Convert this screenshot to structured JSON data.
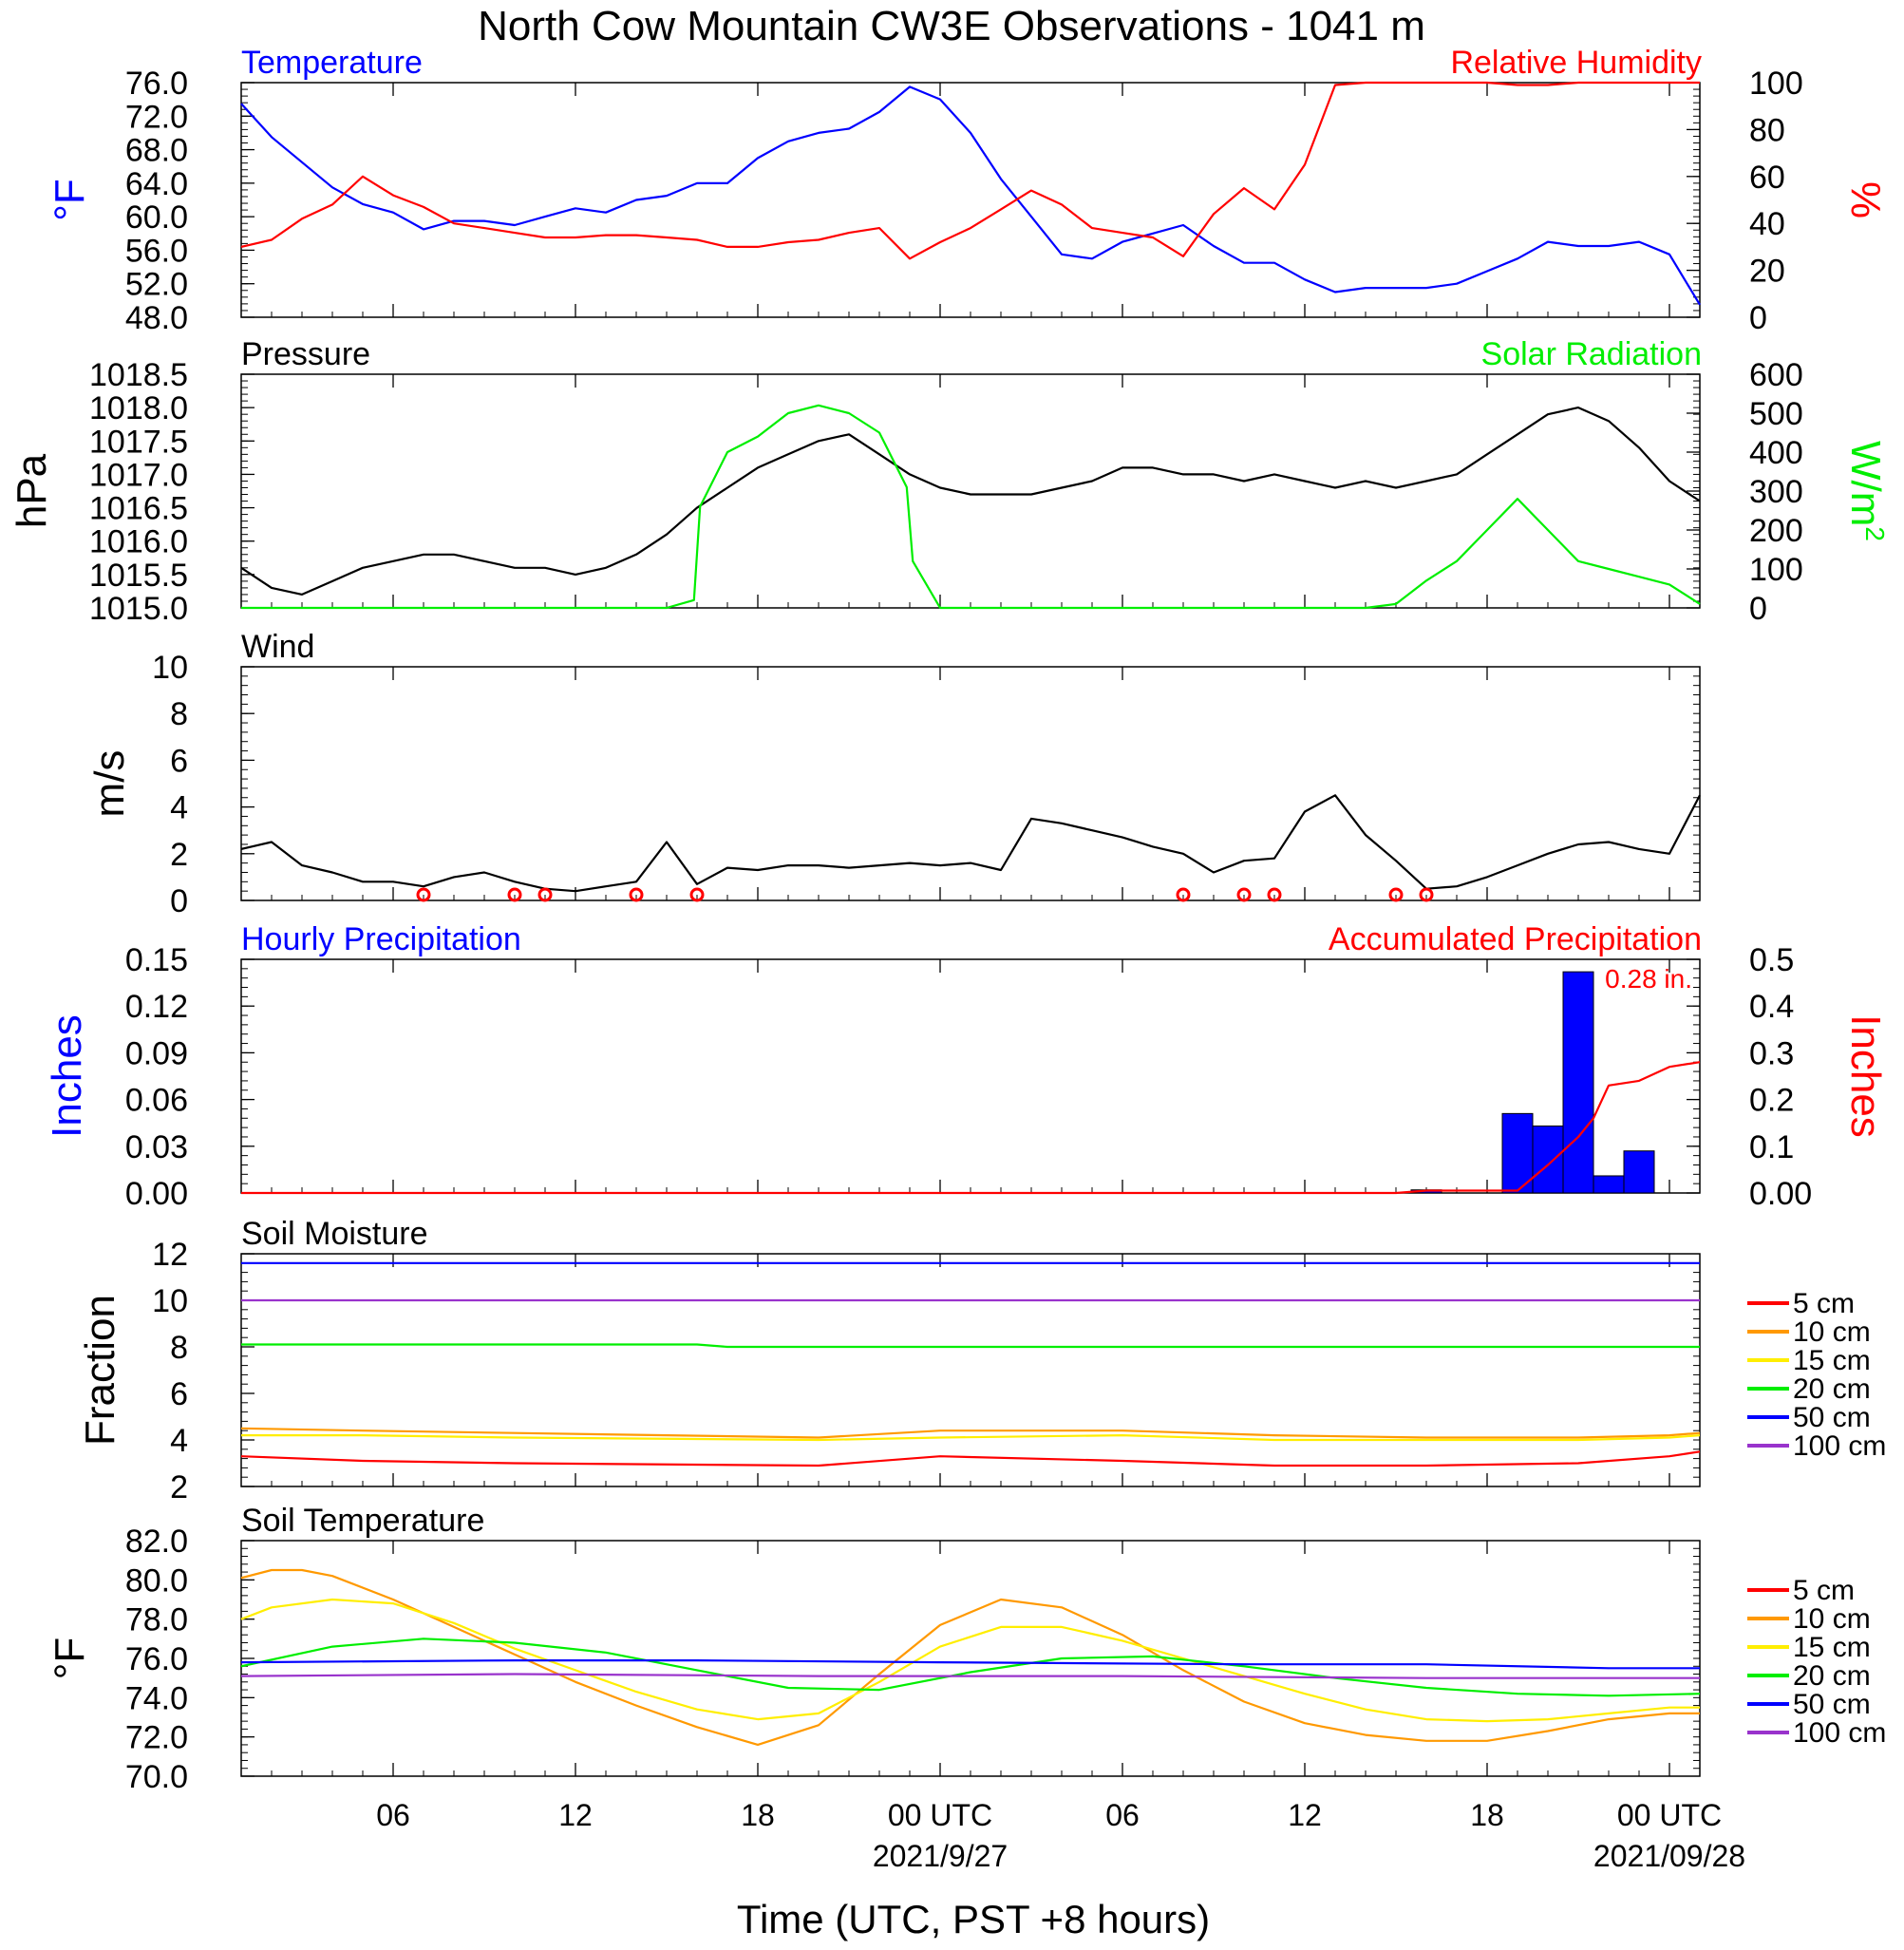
{
  "title": "North Cow Mountain CW3E Observations - 1041 m",
  "xlabel": "Time (UTC, PST +8 hours)",
  "x_ticks": [
    {
      "label": "06",
      "hour": 6
    },
    {
      "label": "12",
      "hour": 12
    },
    {
      "label": "18",
      "hour": 18
    },
    {
      "label": "00 UTC",
      "hour": 24,
      "sub": "2021/9/27"
    },
    {
      "label": "06",
      "hour": 30
    },
    {
      "label": "12",
      "hour": 36
    },
    {
      "label": "18",
      "hour": 42
    },
    {
      "label": "00 UTC",
      "hour": 48,
      "sub": "2021/09/28"
    }
  ],
  "x_range": [
    1,
    49
  ],
  "colors": {
    "blue": "#0000ff",
    "red": "#ff0000",
    "green": "#00ee00",
    "black": "#000000",
    "orange": "#ff9900",
    "yellow": "#ffee00",
    "purple": "#9933cc"
  },
  "chart_data": [
    {
      "type": "line",
      "id": "temp_rh",
      "left_title": "Temperature",
      "right_title": "Relative Humidity",
      "left_ylabel": "°F",
      "right_ylabel": "%",
      "left_ylim": [
        48,
        76
      ],
      "right_ylim": [
        0,
        100
      ],
      "left_ticks": [
        "76.0",
        "72.0",
        "68.0",
        "64.0",
        "60.0",
        "56.0",
        "52.0",
        "48.0"
      ],
      "right_ticks": [
        "100",
        "80",
        "60",
        "40",
        "20",
        "0"
      ],
      "series": [
        {
          "name": "Temperature",
          "axis": "left",
          "color": "#0000ff",
          "x": [
            1,
            2,
            3,
            4,
            5,
            6,
            7,
            8,
            9,
            10,
            11,
            12,
            13,
            14,
            15,
            16,
            17,
            18,
            19,
            20,
            21,
            22,
            23,
            24,
            25,
            26,
            27,
            28,
            29,
            30,
            31,
            32,
            33,
            34,
            35,
            36,
            37,
            38,
            39,
            40,
            41,
            42,
            43,
            44,
            45,
            46,
            47,
            48,
            49
          ],
          "y": [
            73.5,
            69.5,
            66.5,
            63.5,
            61.5,
            60.5,
            58.5,
            59.5,
            59.5,
            59,
            60,
            61,
            60.5,
            62,
            62.5,
            64,
            64,
            67,
            69,
            70,
            70.5,
            72.5,
            75.5,
            74,
            70,
            64.5,
            60,
            55.5,
            55,
            57,
            58,
            59,
            56.5,
            54.5,
            54.5,
            52.5,
            51,
            51.5,
            51.5,
            51.5,
            52,
            53.5,
            55,
            57,
            56.5,
            56.5,
            57,
            55.5,
            49.5
          ]
        },
        {
          "name": "Relative Humidity",
          "axis": "right",
          "color": "#ff0000",
          "x": [
            1,
            2,
            3,
            4,
            5,
            6,
            7,
            8,
            9,
            10,
            11,
            12,
            13,
            14,
            15,
            16,
            17,
            18,
            19,
            20,
            21,
            22,
            23,
            24,
            25,
            26,
            27,
            28,
            29,
            30,
            31,
            32,
            33,
            34,
            35,
            36,
            37,
            38,
            39,
            40,
            41,
            42,
            43,
            44,
            45,
            46,
            47,
            48,
            49
          ],
          "y": [
            30,
            33,
            42,
            48,
            60,
            52,
            47,
            40,
            38,
            36,
            34,
            34,
            35,
            35,
            34,
            33,
            30,
            30,
            32,
            33,
            36,
            38,
            25,
            32,
            38,
            46,
            54,
            48,
            38,
            36,
            34,
            26,
            44,
            55,
            46,
            65,
            99,
            100,
            100,
            100,
            100,
            100,
            99,
            99,
            100,
            100,
            100,
            100,
            100
          ]
        }
      ]
    },
    {
      "type": "line",
      "id": "pressure_solar",
      "left_title": "Pressure",
      "right_title": "Solar Radiation",
      "left_ylabel": "hPa",
      "right_ylabel": "W/m",
      "right_ylabel_sup": "2",
      "left_ylim": [
        1015,
        1018.5
      ],
      "right_ylim": [
        0,
        600
      ],
      "left_ticks": [
        "1018.5",
        "1018.0",
        "1017.5",
        "1017.0",
        "1016.5",
        "1016.0",
        "1015.5",
        "1015.0"
      ],
      "right_ticks": [
        "600",
        "500",
        "400",
        "300",
        "200",
        "100",
        "0"
      ],
      "series": [
        {
          "name": "Pressure",
          "axis": "left",
          "color": "#000000",
          "x": [
            1,
            2,
            3,
            4,
            5,
            6,
            7,
            8,
            9,
            10,
            11,
            12,
            13,
            14,
            15,
            16,
            17,
            18,
            19,
            20,
            21,
            22,
            23,
            24,
            25,
            26,
            27,
            28,
            29,
            30,
            31,
            32,
            33,
            34,
            35,
            36,
            37,
            38,
            39,
            40,
            41,
            42,
            43,
            44,
            45,
            46,
            47,
            48,
            49
          ],
          "y": [
            1015.6,
            1015.3,
            1015.2,
            1015.4,
            1015.6,
            1015.7,
            1015.8,
            1015.8,
            1015.7,
            1015.6,
            1015.6,
            1015.5,
            1015.6,
            1015.8,
            1016.1,
            1016.5,
            1016.8,
            1017.1,
            1017.3,
            1017.5,
            1017.6,
            1017.3,
            1017.0,
            1016.8,
            1016.7,
            1016.7,
            1016.7,
            1016.8,
            1016.9,
            1017.1,
            1017.1,
            1017.0,
            1017.0,
            1016.9,
            1017.0,
            1016.9,
            1016.8,
            1016.9,
            1016.8,
            1016.9,
            1017.0,
            1017.3,
            1017.6,
            1017.9,
            1018.0,
            1017.8,
            1017.4,
            1016.9,
            1016.6
          ]
        },
        {
          "name": "Solar Radiation",
          "axis": "right",
          "color": "#00ee00",
          "x": [
            1,
            2,
            3,
            4,
            5,
            6,
            7,
            8,
            9,
            10,
            11,
            12,
            13,
            14,
            15,
            15.9,
            16.1,
            17,
            18,
            19,
            20,
            21,
            22,
            22.9,
            23.1,
            24,
            25,
            26,
            27,
            28,
            29,
            30,
            31,
            32,
            33,
            34,
            35,
            36,
            37,
            38,
            39,
            40,
            41,
            42,
            43,
            44,
            45,
            46,
            47,
            48,
            49
          ],
          "y": [
            0,
            0,
            0,
            0,
            0,
            0,
            0,
            0,
            0,
            0,
            0,
            0,
            0,
            0,
            0,
            20,
            260,
            400,
            440,
            500,
            520,
            500,
            450,
            310,
            120,
            0,
            0,
            0,
            0,
            0,
            0,
            0,
            0,
            0,
            0,
            0,
            0,
            0,
            0,
            0,
            10,
            70,
            120,
            200,
            280,
            200,
            120,
            100,
            80,
            60,
            10
          ]
        }
      ]
    },
    {
      "type": "line",
      "id": "wind",
      "left_title": "Wind",
      "left_ylabel": "m/s",
      "left_ylim": [
        0,
        10
      ],
      "left_ticks": [
        "10",
        "8",
        "6",
        "4",
        "2",
        "0"
      ],
      "series": [
        {
          "name": "Wind",
          "axis": "left",
          "color": "#000000",
          "x": [
            1,
            2,
            3,
            4,
            5,
            6,
            7,
            8,
            9,
            10,
            11,
            12,
            13,
            14,
            15,
            16,
            17,
            18,
            19,
            20,
            21,
            22,
            23,
            24,
            25,
            26,
            27,
            28,
            29,
            30,
            31,
            32,
            33,
            34,
            35,
            36,
            37,
            38,
            39,
            40,
            41,
            42,
            43,
            44,
            45,
            46,
            47,
            48,
            49
          ],
          "y": [
            2.2,
            2.5,
            1.5,
            1.2,
            0.8,
            0.8,
            0.6,
            1,
            1.2,
            0.8,
            0.5,
            0.4,
            0.6,
            0.8,
            2.5,
            0.7,
            1.4,
            1.3,
            1.5,
            1.5,
            1.4,
            1.5,
            1.6,
            1.5,
            1.6,
            1.3,
            3.5,
            3.3,
            3.0,
            2.7,
            2.3,
            2.0,
            1.2,
            1.7,
            1.8,
            3.8,
            4.5,
            2.8,
            1.7,
            0.5,
            0.6,
            1.0,
            1.5,
            2.0,
            2.4,
            2.5,
            2.2,
            2.0,
            4.5
          ]
        }
      ],
      "barb_calm_hours": [
        7,
        10,
        11,
        14,
        16,
        32,
        34,
        35,
        39,
        40
      ]
    },
    {
      "type": "bar",
      "id": "precip",
      "left_title": "Hourly Precipitation",
      "right_title": "Accumulated Precipitation",
      "annotation": "0.28 in.",
      "left_ylabel": "Inches",
      "right_ylabel": "Inches",
      "left_ylim": [
        0,
        0.15
      ],
      "right_ylim": [
        0,
        0.5
      ],
      "left_ticks": [
        "0.15",
        "0.12",
        "0.09",
        "0.06",
        "0.03",
        "0.00"
      ],
      "right_ticks": [
        "0.5",
        "0.4",
        "0.3",
        "0.2",
        "0.1",
        "0.00"
      ],
      "bars": {
        "name": "Hourly Precipitation",
        "color": "#0000ff",
        "x": [
          40,
          43,
          44,
          45,
          46,
          47,
          48
        ],
        "values": [
          0.002,
          0.051,
          0.043,
          0.142,
          0.011,
          0.027,
          0.0
        ]
      },
      "series": [
        {
          "name": "Accumulated Precipitation",
          "axis": "right",
          "color": "#ff0000",
          "x": [
            1,
            39,
            40,
            43,
            44,
            45,
            45.5,
            46,
            47,
            48,
            49
          ],
          "y": [
            0,
            0,
            0.005,
            0.005,
            0.06,
            0.12,
            0.16,
            0.23,
            0.24,
            0.27,
            0.28
          ]
        }
      ]
    },
    {
      "type": "line",
      "id": "soil_moisture",
      "left_title": "Soil Moisture",
      "left_ylabel": "Fraction",
      "left_ylim": [
        2,
        12
      ],
      "left_ticks": [
        "12",
        "10",
        "8",
        "6",
        "4",
        "2"
      ],
      "legend": [
        "5 cm",
        "10 cm",
        "15 cm",
        "20 cm",
        "50 cm",
        "100 cm"
      ],
      "series": [
        {
          "name": "5 cm",
          "color": "#ff0000",
          "x": [
            1,
            5,
            10,
            20,
            24,
            30,
            35,
            40,
            45,
            48,
            49
          ],
          "y": [
            3.3,
            3.1,
            3.0,
            2.9,
            3.3,
            3.1,
            2.9,
            2.9,
            3.0,
            3.3,
            3.5
          ]
        },
        {
          "name": "10 cm",
          "color": "#ff9900",
          "x": [
            1,
            5,
            10,
            20,
            24,
            30,
            35,
            40,
            45,
            48,
            49
          ],
          "y": [
            4.5,
            4.4,
            4.3,
            4.1,
            4.4,
            4.4,
            4.2,
            4.1,
            4.1,
            4.2,
            4.3
          ]
        },
        {
          "name": "15 cm",
          "color": "#ffee00",
          "x": [
            1,
            5,
            10,
            20,
            24,
            30,
            35,
            40,
            45,
            48,
            49
          ],
          "y": [
            4.2,
            4.2,
            4.1,
            4.0,
            4.1,
            4.2,
            4.0,
            4.0,
            4.0,
            4.1,
            4.2
          ]
        },
        {
          "name": "20 cm",
          "color": "#00ee00",
          "x": [
            1,
            16,
            17,
            24,
            40,
            49
          ],
          "y": [
            8.1,
            8.1,
            8.0,
            8.0,
            8.0,
            8.0
          ]
        },
        {
          "name": "50 cm",
          "color": "#0000ff",
          "x": [
            1,
            49
          ],
          "y": [
            11.6,
            11.6
          ]
        },
        {
          "name": "100 cm",
          "color": "#9933cc",
          "x": [
            1,
            49
          ],
          "y": [
            10.0,
            10.0
          ]
        }
      ]
    },
    {
      "type": "line",
      "id": "soil_temperature",
      "left_title": "Soil Temperature",
      "left_ylabel": "°F",
      "left_ylim": [
        70,
        82
      ],
      "left_ticks": [
        "82.0",
        "80.0",
        "78.0",
        "76.0",
        "74.0",
        "72.0",
        "70.0"
      ],
      "legend": [
        "5 cm",
        "10 cm",
        "15 cm",
        "20 cm",
        "50 cm",
        "100 cm"
      ],
      "series": [
        {
          "name": "5 cm",
          "color": "#ff0000",
          "x": [],
          "y": []
        },
        {
          "name": "10 cm",
          "color": "#ff9900",
          "x": [
            1,
            2,
            3,
            4,
            6,
            8,
            10,
            12,
            14,
            16,
            18,
            20,
            22,
            24,
            26,
            28,
            30,
            32,
            34,
            36,
            38,
            40,
            42,
            44,
            46,
            48,
            49
          ],
          "y": [
            80.1,
            80.5,
            80.5,
            80.2,
            79,
            77.6,
            76.2,
            74.8,
            73.6,
            72.5,
            71.6,
            72.6,
            75.2,
            77.7,
            79,
            78.6,
            77.2,
            75.4,
            73.8,
            72.7,
            72.1,
            71.8,
            71.8,
            72.3,
            72.9,
            73.2,
            73.2
          ]
        },
        {
          "name": "15 cm",
          "color": "#ffee00",
          "x": [
            1,
            2,
            4,
            6,
            8,
            10,
            12,
            14,
            16,
            18,
            20,
            22,
            24,
            26,
            28,
            30,
            32,
            34,
            36,
            38,
            40,
            42,
            44,
            46,
            48,
            49
          ],
          "y": [
            78,
            78.6,
            79,
            78.8,
            77.8,
            76.5,
            75.4,
            74.3,
            73.4,
            72.9,
            73.2,
            74.8,
            76.6,
            77.6,
            77.6,
            76.9,
            76,
            75.1,
            74.2,
            73.4,
            72.9,
            72.8,
            72.9,
            73.2,
            73.5,
            73.5
          ]
        },
        {
          "name": "20 cm",
          "color": "#00ee00",
          "x": [
            1,
            4,
            7,
            10,
            13,
            16,
            19,
            22,
            25,
            28,
            31,
            34,
            37,
            40,
            43,
            46,
            49
          ],
          "y": [
            75.6,
            76.6,
            77,
            76.8,
            76.3,
            75.4,
            74.5,
            74.4,
            75.3,
            76,
            76.1,
            75.6,
            75.0,
            74.5,
            74.2,
            74.1,
            74.2
          ]
        },
        {
          "name": "50 cm",
          "color": "#0000ff",
          "x": [
            1,
            10,
            16,
            24,
            34,
            40,
            46,
            49
          ],
          "y": [
            75.8,
            75.9,
            75.9,
            75.8,
            75.7,
            75.7,
            75.5,
            75.5
          ]
        },
        {
          "name": "100 cm",
          "color": "#9933cc",
          "x": [
            1,
            10,
            20,
            30,
            40,
            49
          ],
          "y": [
            75.1,
            75.2,
            75.1,
            75.1,
            75.0,
            75.0
          ]
        }
      ]
    }
  ]
}
